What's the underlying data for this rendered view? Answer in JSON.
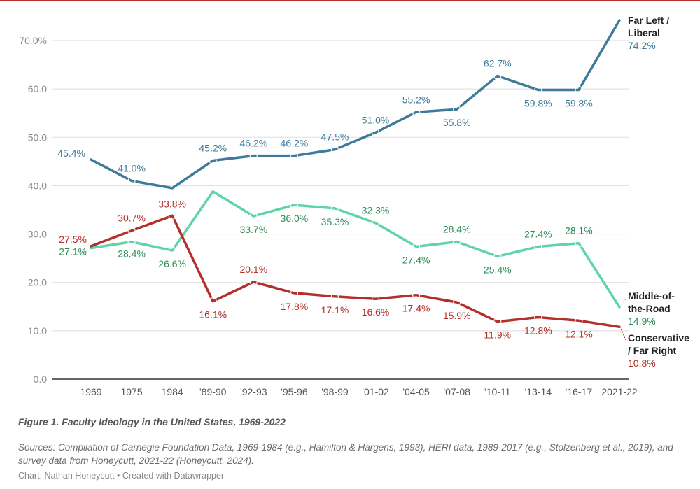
{
  "figure_caption": "Figure 1. Faculty Ideology in the United States, 1969-2022",
  "sources": "Sources: Compilation of Carnegie Foundation Data, 1969-1984 (e.g., Hamilton & Hargens, 1993), HERI data, 1989-2017 (e.g., Stolzenberg et al., 2019), and survey data from Honeycutt, 2021-22 (Honeycutt, 2024).",
  "credit": "Chart: Nathan Honeycutt • Created with Datawrapper",
  "colors": {
    "liberal": "#3e7b9a",
    "middle": "#5fd4ab",
    "middle_text": "#2e8b57",
    "conservative": "#b3302a",
    "grid": "#dddddd",
    "axis_text": "#8a8a8a",
    "accent": "#b3302a"
  },
  "chart_data": {
    "type": "line",
    "title": "",
    "xlabel": "",
    "ylabel": "",
    "ylim": [
      0,
      70
    ],
    "yticks": [
      {
        "value": 0,
        "label": "0.0"
      },
      {
        "value": 10,
        "label": "10.0"
      },
      {
        "value": 20,
        "label": "20.0"
      },
      {
        "value": 30,
        "label": "30.0"
      },
      {
        "value": 40,
        "label": "40.0"
      },
      {
        "value": 50,
        "label": "50.0"
      },
      {
        "value": 60,
        "label": "60.0"
      },
      {
        "value": 70,
        "label": "70.0%"
      }
    ],
    "categories": [
      "1969",
      "1975",
      "1984",
      "'89-90",
      "'92-93",
      "'95-96",
      "'98-99",
      "'01-02",
      "'04-05",
      "'07-08",
      "'10-11",
      "'13-14",
      "'16-17",
      "2021-22"
    ],
    "series": [
      {
        "key": "liberal",
        "name": "Far Left / Liberal",
        "name_lines": [
          "Far Left /",
          "Liberal"
        ],
        "values": [
          45.4,
          41.0,
          39.5,
          45.2,
          46.2,
          46.2,
          47.5,
          51.0,
          55.2,
          55.8,
          62.7,
          59.8,
          59.8,
          74.2
        ],
        "labels": [
          "45.4%",
          "41.0%",
          null,
          "45.2%",
          "46.2%",
          "46.2%",
          "47.5%",
          "51.0%",
          "55.2%",
          "55.8%",
          "62.7%",
          "59.8%",
          "59.8%",
          null
        ],
        "end_label": "74.2%"
      },
      {
        "key": "middle",
        "name": "Middle-of-the-Road",
        "name_lines": [
          "Middle-of-",
          "the-Road"
        ],
        "values": [
          27.1,
          28.4,
          26.6,
          38.8,
          33.7,
          36.0,
          35.3,
          32.3,
          27.4,
          28.4,
          25.4,
          27.4,
          28.1,
          14.9
        ],
        "labels": [
          "27.1%",
          "28.4%",
          "26.6%",
          null,
          "33.7%",
          "36.0%",
          "35.3%",
          "32.3%",
          "27.4%",
          "28.4%",
          "25.4%",
          "27.4%",
          "28.1%",
          null
        ],
        "end_label": "14.9%"
      },
      {
        "key": "conservative",
        "name": "Conservative / Far Right",
        "name_lines": [
          "Conservative",
          "/ Far Right"
        ],
        "values": [
          27.5,
          30.7,
          33.8,
          16.1,
          20.1,
          17.8,
          17.1,
          16.6,
          17.4,
          15.9,
          11.9,
          12.8,
          12.1,
          10.8
        ],
        "labels": [
          "27.5%",
          "30.7%",
          "33.8%",
          "16.1%",
          "20.1%",
          "17.8%",
          "17.1%",
          "16.6%",
          "17.4%",
          "15.9%",
          "11.9%",
          "12.8%",
          "12.1%",
          null
        ],
        "end_label": "10.8%"
      }
    ]
  }
}
